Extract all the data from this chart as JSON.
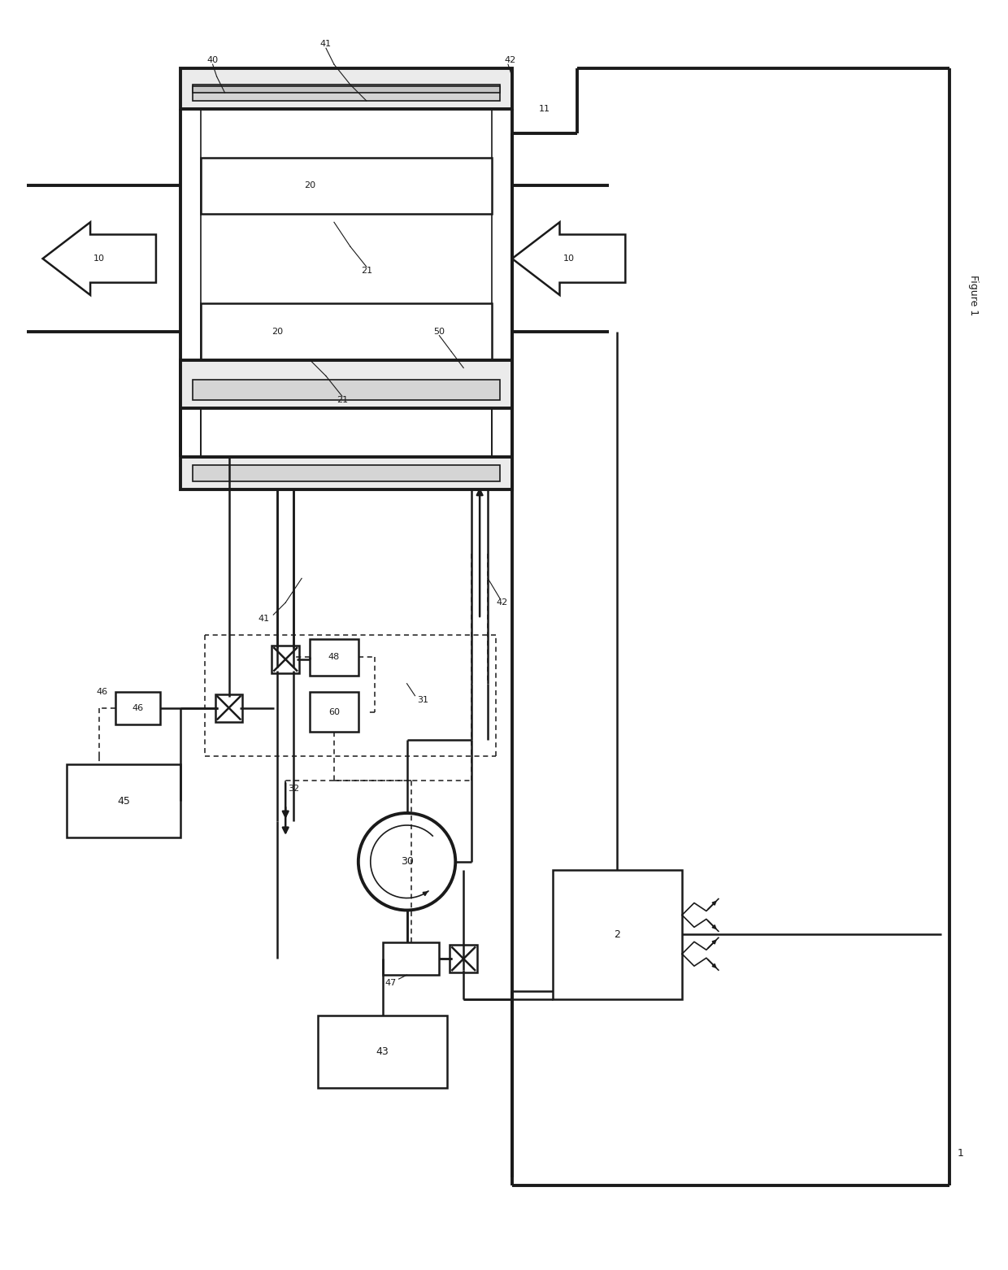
{
  "bg": "#ffffff",
  "lc": "#1a1a1a",
  "fw": 12.4,
  "fh": 15.62,
  "dpi": 100,
  "lw_thick": 2.8,
  "lw_med": 1.8,
  "lw_thin": 1.2,
  "lw_dash": 1.1
}
